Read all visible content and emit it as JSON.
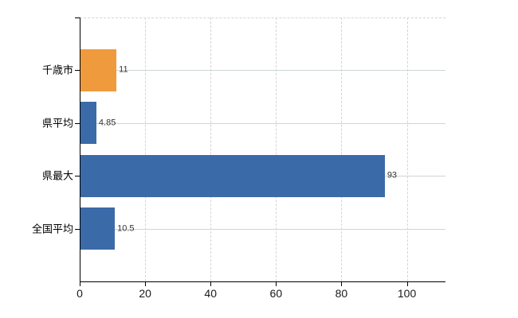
{
  "chart_data": {
    "type": "bar",
    "orientation": "horizontal",
    "categories": [
      "千歳市",
      "県平均",
      "県最大",
      "全国平均"
    ],
    "values": [
      11,
      4.85,
      93,
      10.5
    ],
    "value_labels": [
      "11",
      "4.85",
      "93",
      "10.5"
    ],
    "bar_colors": [
      "#ef9a3c",
      "#3b6aa9",
      "#3b6aa9",
      "#3b6aa9"
    ],
    "x_ticks": [
      {
        "value": 0,
        "label": "0"
      },
      {
        "value": 20,
        "label": "20"
      },
      {
        "value": 40,
        "label": "40"
      },
      {
        "value": 60,
        "label": "60"
      },
      {
        "value": 80,
        "label": "80"
      },
      {
        "value": 100,
        "label": "100"
      }
    ],
    "xlim": [
      0,
      111.8
    ],
    "grid": {
      "vertical_style": "dashed",
      "vertical_color": "#d8d2d8",
      "horizontal_style": "solid",
      "horizontal_color": "#ced6ce"
    },
    "axis_color": "#000000",
    "category_label_color": "#000000",
    "value_label_color": "#333333",
    "legend": "none",
    "background": "#ffffff"
  }
}
